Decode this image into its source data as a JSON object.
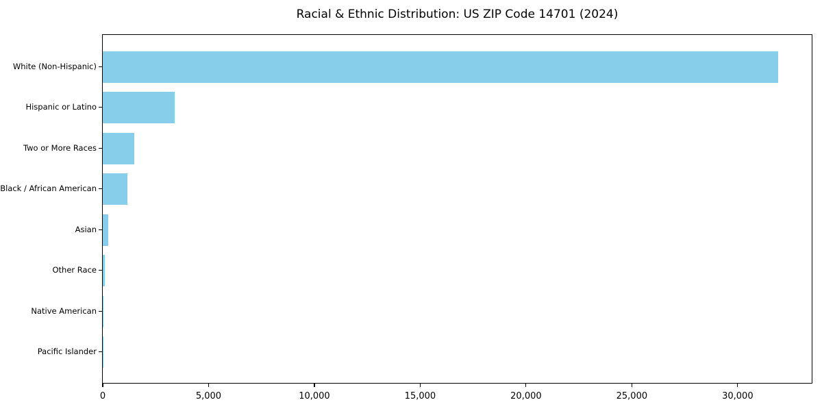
{
  "chart_data": {
    "type": "bar",
    "orientation": "horizontal",
    "title": "Racial & Ethnic Distribution: US ZIP Code 14701 (2024)",
    "categories": [
      "White (Non-Hispanic)",
      "Hispanic or Latino",
      "Two or More Races",
      "Black / African American",
      "Asian",
      "Other Race",
      "Native American",
      "Pacific Islander"
    ],
    "values": [
      31900,
      3400,
      1490,
      1150,
      260,
      95,
      30,
      10
    ],
    "xlabel": "",
    "ylabel": "",
    "xlim": [
      0,
      33500
    ],
    "xticks": [
      0,
      5000,
      10000,
      15000,
      20000,
      25000,
      30000
    ],
    "xtick_labels": [
      "0",
      "5,000",
      "10,000",
      "15,000",
      "20,000",
      "25,000",
      "30,000"
    ],
    "bar_color": "#87CEEB",
    "axis_color": "#000000",
    "text_color": "#000000",
    "background_color": "#ffffff",
    "grid": false,
    "legend": null
  }
}
